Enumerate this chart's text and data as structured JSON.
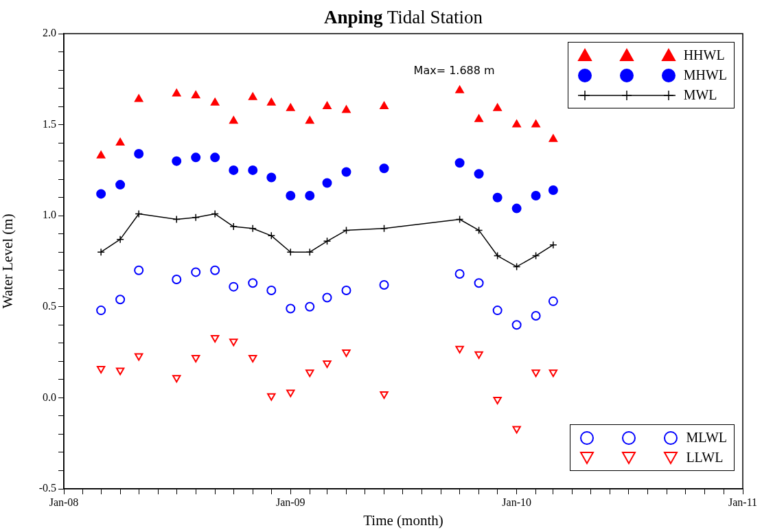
{
  "chart_data": {
    "type": "scatter",
    "title": "Anping Tidal Station",
    "xlabel": "Time (month)",
    "ylabel": "Water Level (m)",
    "x": [
      "2008-03",
      "2008-04",
      "2008-05",
      "2008-07",
      "2008-08",
      "2008-09",
      "2008-10",
      "2008-11",
      "2008-12",
      "2009-01",
      "2009-02",
      "2009-03",
      "2009-04",
      "2009-06",
      "2009-10",
      "2009-11",
      "2009-12",
      "2010-01",
      "2010-02",
      "2010-03"
    ],
    "series": [
      {
        "name": "HHWL",
        "color": "#ff0000",
        "marker": "triangle",
        "values": [
          1.33,
          1.4,
          1.64,
          1.67,
          1.66,
          1.62,
          1.52,
          1.65,
          1.62,
          1.59,
          1.52,
          1.6,
          1.58,
          1.6,
          1.688,
          1.53,
          1.59,
          1.5,
          1.5,
          1.42
        ]
      },
      {
        "name": "MHWL",
        "color": "#0000ff",
        "marker": "circle",
        "values": [
          1.12,
          1.17,
          1.34,
          1.3,
          1.32,
          1.32,
          1.25,
          1.25,
          1.21,
          1.11,
          1.11,
          1.18,
          1.24,
          1.26,
          1.29,
          1.23,
          1.1,
          1.04,
          1.11,
          1.14
        ]
      },
      {
        "name": "MWL",
        "color": "#000000",
        "type": "line",
        "marker": "cross",
        "line_style": "solid",
        "values": [
          0.8,
          0.87,
          1.01,
          0.98,
          0.99,
          1.01,
          0.94,
          0.93,
          0.89,
          0.8,
          0.8,
          0.86,
          0.92,
          0.93,
          0.98,
          0.92,
          0.78,
          0.72,
          0.78,
          0.84
        ]
      },
      {
        "name": "MLWL",
        "color": "#0000ff",
        "marker": "circle",
        "values": [
          0.48,
          0.54,
          0.7,
          0.65,
          0.69,
          0.7,
          0.61,
          0.63,
          0.59,
          0.49,
          0.5,
          0.55,
          0.59,
          0.62,
          0.68,
          0.63,
          0.48,
          0.4,
          0.45,
          0.53
        ]
      },
      {
        "name": "LLWL",
        "color": "#ff0000",
        "marker": "triangle-down",
        "values": [
          0.16,
          0.15,
          0.23,
          0.11,
          0.22,
          0.33,
          0.31,
          0.22,
          0.01,
          0.03,
          0.14,
          0.19,
          0.25,
          0.02,
          0.27,
          0.24,
          -0.01,
          -0.17,
          0.14,
          0.14
        ]
      }
    ],
    "annotations": [
      {
        "text": "Max= 1.688 m",
        "x": "2009-10",
        "y": 1.688
      }
    ],
    "xlim": [
      "2008-01",
      "2011-01"
    ],
    "xticks": [
      {
        "value": "2008-01",
        "label": "Jan-08"
      },
      {
        "value": "2008-02",
        "label": null
      },
      {
        "value": "2008-03",
        "label": null
      },
      {
        "value": "2008-04",
        "label": null
      },
      {
        "value": "2008-05",
        "label": null
      },
      {
        "value": "2008-06",
        "label": null
      },
      {
        "value": "2008-07",
        "label": null
      },
      {
        "value": "2008-08",
        "label": null
      },
      {
        "value": "2008-09",
        "label": null
      },
      {
        "value": "2008-10",
        "label": null
      },
      {
        "value": "2008-11",
        "label": null
      },
      {
        "value": "2008-12",
        "label": null
      },
      {
        "value": "2009-01",
        "label": "Jan-09"
      },
      {
        "value": "2009-02",
        "label": null
      },
      {
        "value": "2009-03",
        "label": null
      },
      {
        "value": "2009-04",
        "label": null
      },
      {
        "value": "2009-05",
        "label": null
      },
      {
        "value": "2009-06",
        "label": null
      },
      {
        "value": "2009-07",
        "label": null
      },
      {
        "value": "2009-08",
        "label": null
      },
      {
        "value": "2009-09",
        "label": null
      },
      {
        "value": "2009-10",
        "label": null
      },
      {
        "value": "2009-11",
        "label": null
      },
      {
        "value": "2009-12",
        "label": null
      },
      {
        "value": "2010-01",
        "label": "Jan-10"
      },
      {
        "value": "2010-02",
        "label": null
      },
      {
        "value": "2010-03",
        "label": null
      },
      {
        "value": "2010-04",
        "label": null
      },
      {
        "value": "2010-05",
        "label": null
      },
      {
        "value": "2010-06",
        "label": null
      },
      {
        "value": "2010-07",
        "label": null
      },
      {
        "value": "2010-08",
        "label": null
      },
      {
        "value": "2010-09",
        "label": null
      },
      {
        "value": "2010-10",
        "label": null
      },
      {
        "value": "2010-11",
        "label": null
      },
      {
        "value": "2010-12",
        "label": null
      },
      {
        "value": "2011-01",
        "label": "Jan-11"
      }
    ],
    "ylim": [
      -0.5,
      2.0
    ],
    "yticks": [
      {
        "value": -0.5,
        "label": "-0.5"
      },
      {
        "value": -0.4,
        "label": null
      },
      {
        "value": -0.3,
        "label": null
      },
      {
        "value": -0.2,
        "label": null
      },
      {
        "value": -0.1,
        "label": null
      },
      {
        "value": 0,
        "label": "0.0"
      },
      {
        "value": 0.1,
        "label": null
      },
      {
        "value": 0.2,
        "label": null
      },
      {
        "value": 0.3,
        "label": null
      },
      {
        "value": 0.4,
        "label": null
      },
      {
        "value": 0.5,
        "label": "0.5"
      },
      {
        "value": 0.6,
        "label": null
      },
      {
        "value": 0.7,
        "label": null
      },
      {
        "value": 0.8,
        "label": null
      },
      {
        "value": 0.9,
        "label": null
      },
      {
        "value": 1.0,
        "label": "1.0"
      },
      {
        "value": 1.1,
        "label": null
      },
      {
        "value": 1.2,
        "label": null
      },
      {
        "value": 1.3,
        "label": null
      },
      {
        "value": 1.4,
        "label": null
      },
      {
        "value": 1.5,
        "label": "1.5"
      },
      {
        "value": 1.6,
        "label": null
      },
      {
        "value": 1.7,
        "label": null
      },
      {
        "value": 1.8,
        "label": null
      },
      {
        "value": 1.9,
        "label": null
      },
      {
        "value": 2.0,
        "label": "2.0"
      }
    ],
    "grid": false,
    "legend": "right"
  }
}
